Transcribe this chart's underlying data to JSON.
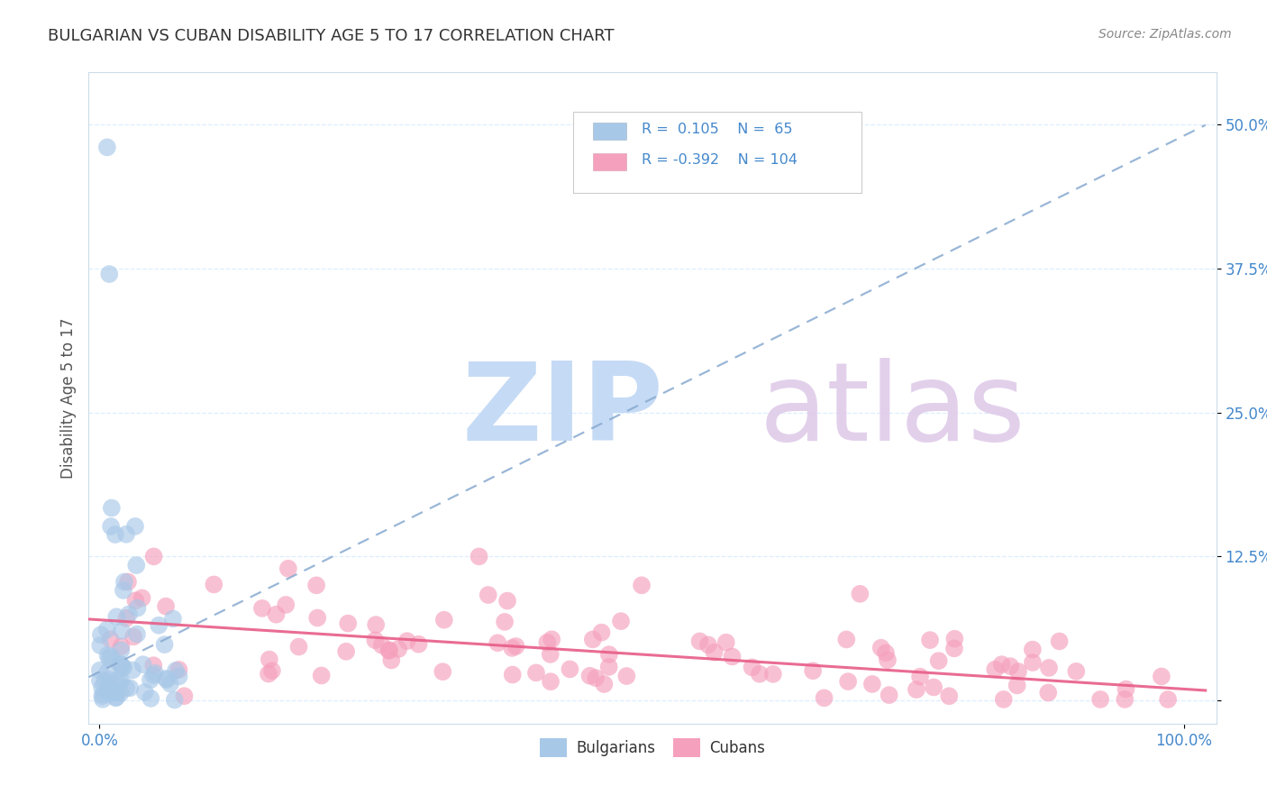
{
  "title": "BULGARIAN VS CUBAN DISABILITY AGE 5 TO 17 CORRELATION CHART",
  "source": "Source: ZipAtlas.com",
  "ylabel": "Disability Age 5 to 17",
  "yticks": [
    0.0,
    0.125,
    0.25,
    0.375,
    0.5
  ],
  "ytick_labels": [
    "",
    "12.5%",
    "25.0%",
    "37.5%",
    "50.0%"
  ],
  "xlim": [
    -0.01,
    1.03
  ],
  "ylim": [
    -0.02,
    0.545
  ],
  "bulgarian_R": 0.105,
  "bulgarian_N": 65,
  "cuban_R": -0.392,
  "cuban_N": 104,
  "bulgarian_color": "#a8c8e8",
  "cuban_color": "#f5a0bc",
  "bulgarian_line_color": "#88aad0",
  "cuban_line_color": "#e8608a",
  "grid_color": "#ddeeff",
  "bg_color": "#ffffff",
  "text_color": "#4488cc",
  "title_color": "#333333",
  "source_color": "#888888"
}
